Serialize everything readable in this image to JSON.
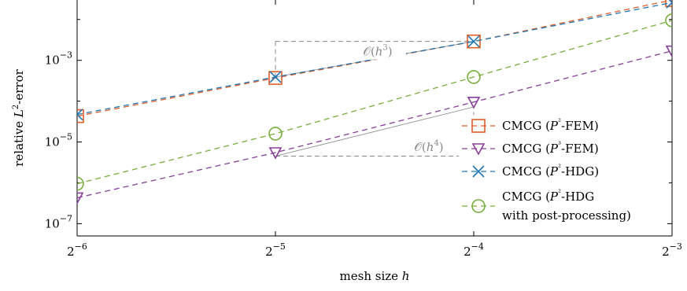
{
  "chart_data": {
    "type": "line",
    "xscale": "log2",
    "yscale": "log10",
    "xlabel": "mesh size h",
    "ylabel": "relative L²-error",
    "x": [
      0.015625,
      0.03125,
      0.0625,
      0.125
    ],
    "x_tick_labels": [
      {
        "base": "2",
        "exp": "−6"
      },
      {
        "base": "2",
        "exp": "−5"
      },
      {
        "base": "2",
        "exp": "−4"
      },
      {
        "base": "2",
        "exp": "−3"
      }
    ],
    "y_tick_labels": [
      {
        "base": "10",
        "exp": "−3"
      },
      {
        "base": "10",
        "exp": "−5"
      },
      {
        "base": "10",
        "exp": "−7"
      }
    ],
    "y_ticks": [
      0.001,
      1e-05,
      1e-07
    ],
    "ylim": [
      5e-08,
      0.03
    ],
    "series": [
      {
        "name": "CMCG (P²-FEM)",
        "legend_parts": [
          "CMCG (",
          "P",
          "²",
          "-FEM)"
        ],
        "color": "#e05d27",
        "marker": "square",
        "values": [
          4.3e-05,
          0.00037,
          0.0029,
          0.03
        ]
      },
      {
        "name": "CMCG (P³-FEM)",
        "legend_parts": [
          "CMCG (",
          "P",
          "³",
          "-FEM)"
        ],
        "color": "#8a3e9b",
        "marker": "triangle-down",
        "values": [
          4.3e-07,
          5.5e-06,
          9.5e-05,
          0.0017
        ]
      },
      {
        "name": "CMCG (P²-HDG)",
        "legend_parts": [
          "CMCG (",
          "P",
          "²",
          "-HDG)"
        ],
        "color": "#1f77b4",
        "marker": "x",
        "values": [
          4.7e-05,
          0.00039,
          0.0029,
          0.026
        ]
      },
      {
        "name": "CMCG (P²-HDG with post-processing)",
        "legend_parts": [
          "CMCG (",
          "P",
          "²",
          "-HDG"
        ],
        "legend_line2": "with post-processing)",
        "color": "#77ad3a",
        "marker": "circle",
        "values": [
          9.5e-07,
          1.6e-05,
          0.00039,
          0.0095
        ]
      }
    ],
    "annotations": [
      {
        "text": "O(h³)",
        "glyph": "𝒪(",
        "var": "h",
        "exp": "3",
        "close": ")",
        "triangle": {
          "x1": 0.03125,
          "x2": 0.0625,
          "y_low": 0.00039,
          "y_high": 0.0029
        }
      },
      {
        "text": "O(h⁴)",
        "glyph": "𝒪(",
        "var": "h",
        "exp": "4",
        "close": ")",
        "triangle": {
          "x1": 0.03125,
          "x2": 0.0625,
          "y_low": 4.5e-06,
          "y_high": 7.2e-05
        }
      }
    ],
    "grid": false,
    "legend_position": "bottom-right"
  }
}
